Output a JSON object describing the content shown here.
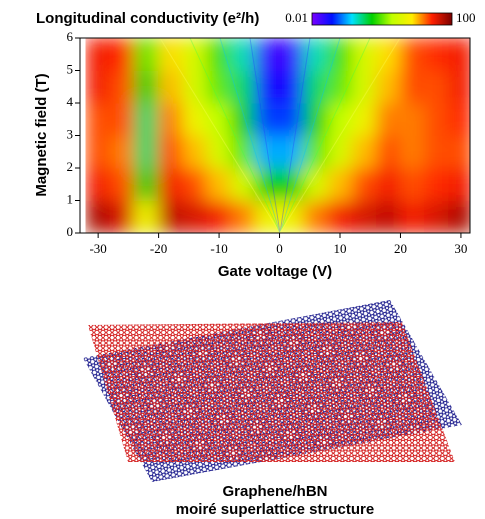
{
  "chart_data": {
    "type": "heatmap",
    "title": "Longitudinal conductivity (e²/h)",
    "xlabel": "Gate voltage (V)",
    "ylabel": "Magnetic field (T)",
    "x": [
      -30,
      -26,
      -22,
      -18,
      -14,
      -10,
      -6,
      -2,
      2,
      6,
      10,
      14,
      18,
      22,
      26,
      30
    ],
    "y": [
      0.5,
      1.5,
      2.5,
      3.5,
      4.5,
      5.5
    ],
    "z": [
      [
        60,
        40,
        5,
        50,
        40,
        30,
        15,
        5,
        5,
        15,
        30,
        40,
        50,
        30,
        40,
        60
      ],
      [
        30,
        20,
        0.5,
        30,
        20,
        10,
        3,
        0.5,
        0.5,
        3,
        10,
        20,
        30,
        20,
        25,
        30
      ],
      [
        20,
        15,
        0.3,
        20,
        10,
        3,
        1,
        0.1,
        0.1,
        1,
        3,
        10,
        20,
        15,
        20,
        20
      ],
      [
        20,
        20,
        0.3,
        15,
        5,
        2,
        0.5,
        0.05,
        0.05,
        0.5,
        2,
        5,
        15,
        15,
        20,
        25
      ],
      [
        30,
        20,
        0.5,
        10,
        3,
        1,
        0.3,
        0.03,
        0.03,
        0.3,
        1,
        3,
        10,
        20,
        20,
        30
      ],
      [
        30,
        25,
        1,
        8,
        3,
        0.8,
        0.2,
        0.02,
        0.02,
        0.2,
        0.8,
        3,
        8,
        20,
        25,
        30
      ]
    ],
    "xlim": [
      -33,
      31.5
    ],
    "ylim": [
      0,
      6
    ],
    "xticks": [
      -30,
      -20,
      -10,
      0,
      10,
      20,
      30
    ],
    "yticks": [
      0,
      1,
      2,
      3,
      4,
      5,
      6
    ],
    "clim": [
      0.01,
      100
    ],
    "log_color": true,
    "colorbar_ticks": [
      0.01,
      100
    ],
    "colormap": [
      "#7a00ff",
      "#0010ff",
      "#00e0ff",
      "#00d000",
      "#c0ff00",
      "#ffee00",
      "#ff2000",
      "#7a0000"
    ]
  },
  "illustration": {
    "caption_lines": [
      "Graphene/hBN",
      "moiré superlattice structure"
    ]
  }
}
